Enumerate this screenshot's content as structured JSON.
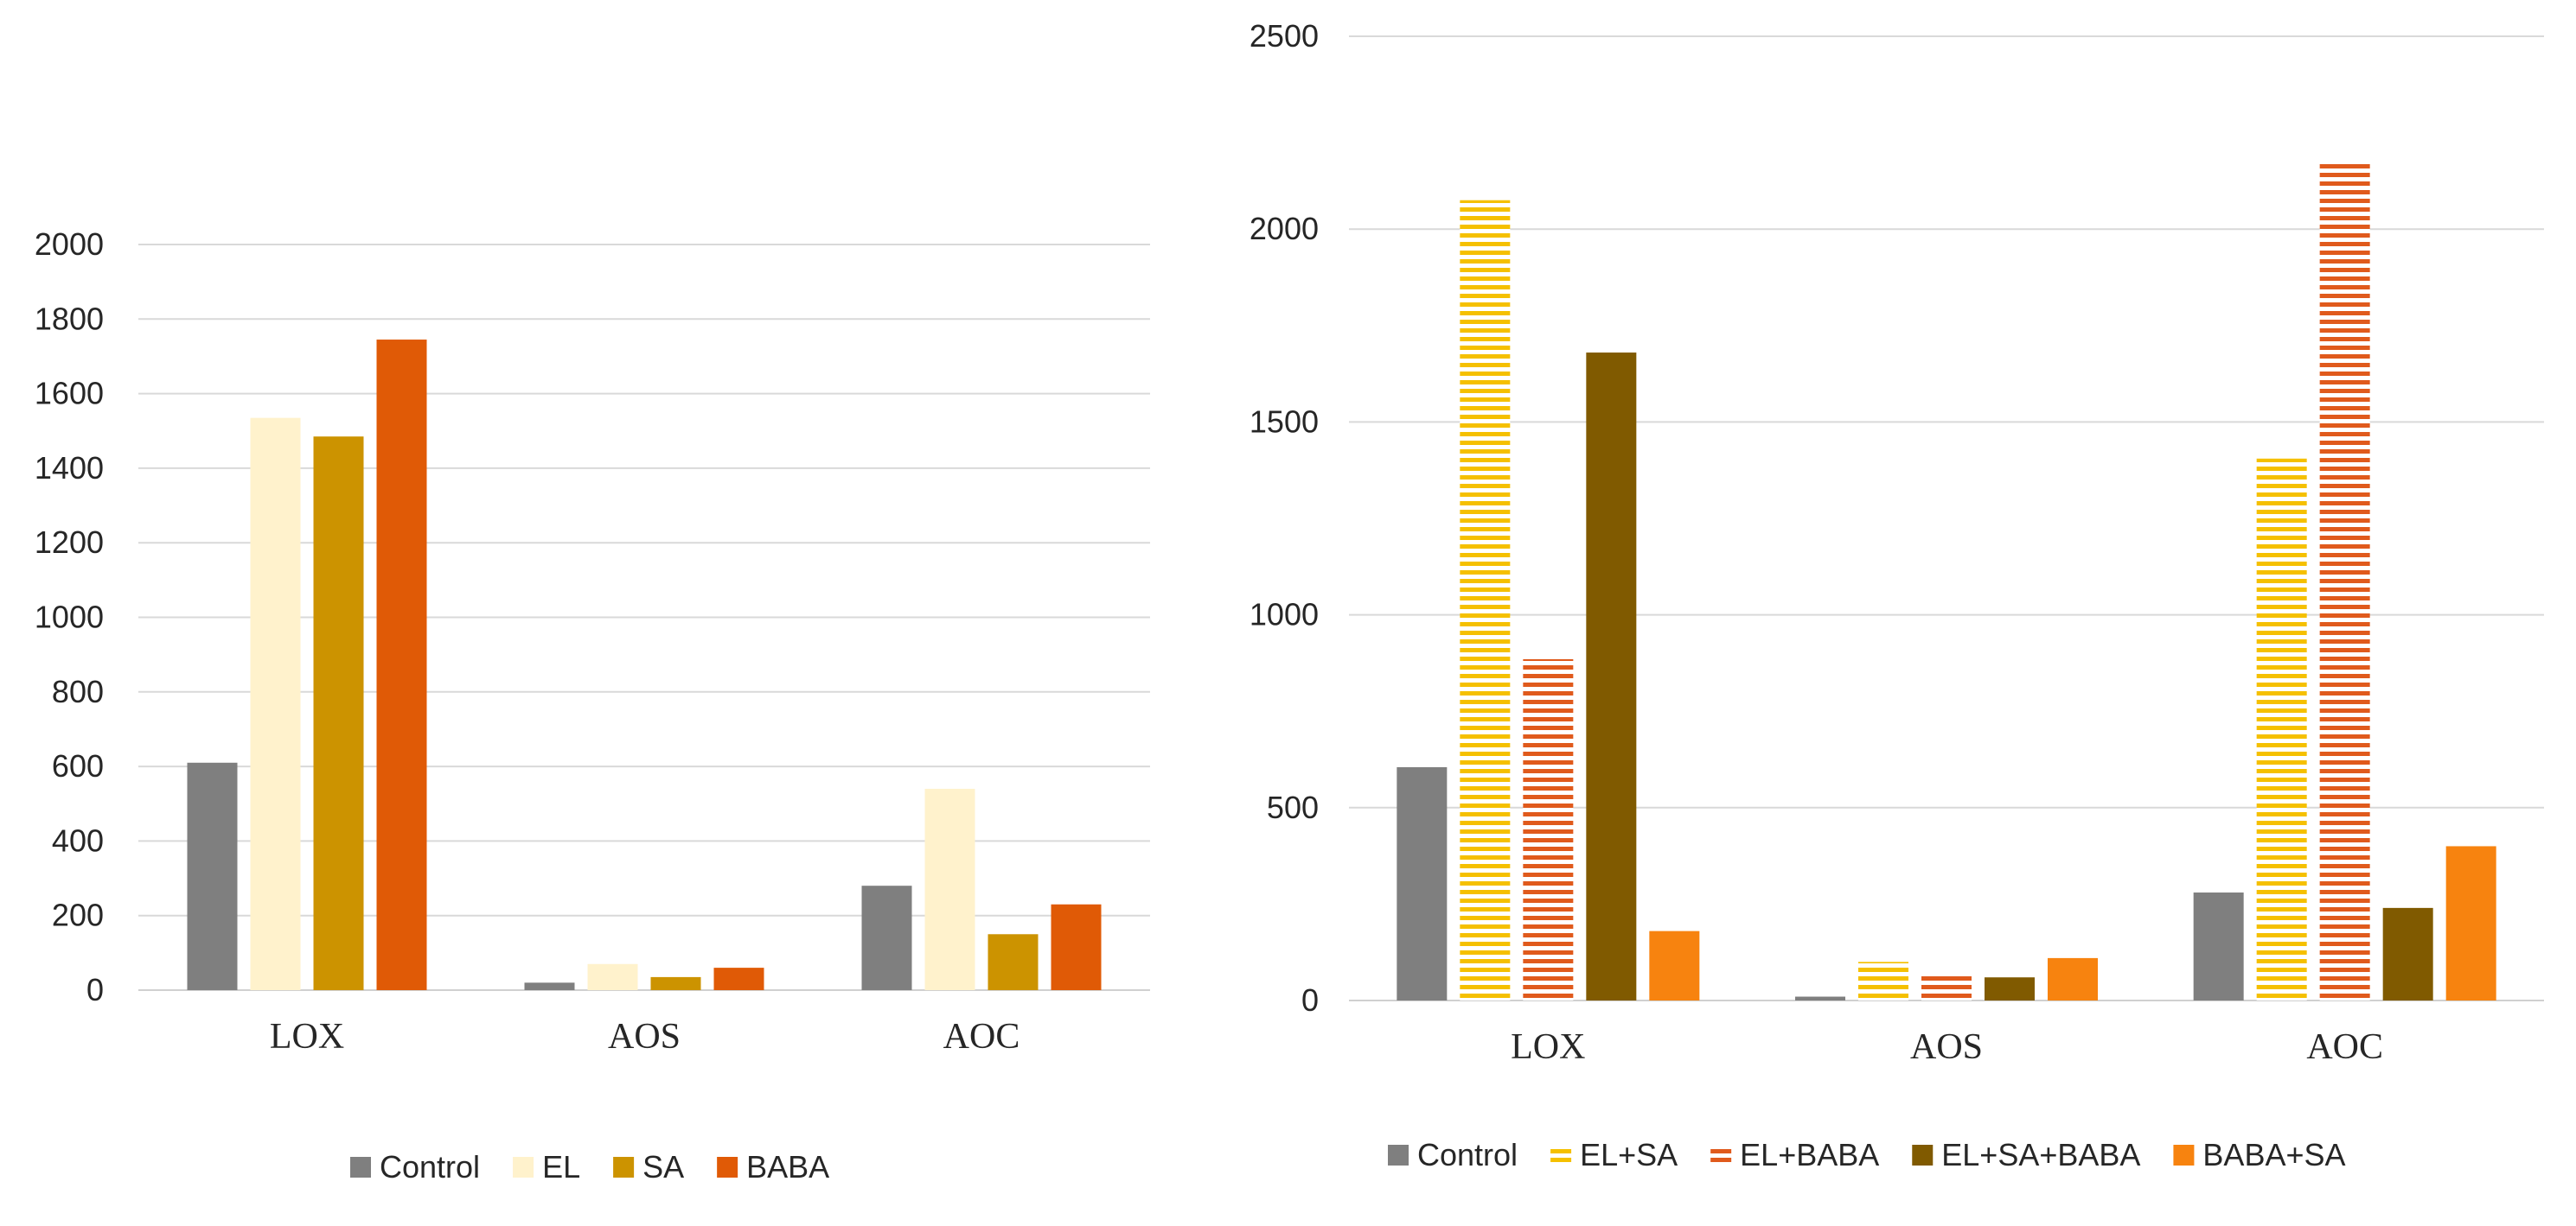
{
  "chart_data": [
    {
      "type": "bar",
      "title": "",
      "xlabel": "",
      "ylabel": "",
      "ylim": [
        0,
        2000
      ],
      "yticks": [
        0,
        200,
        400,
        600,
        800,
        1000,
        1200,
        1400,
        1600,
        1800,
        2000
      ],
      "categories": [
        "LOX",
        "AOS",
        "AOC"
      ],
      "legend_position": "bottom",
      "series": [
        {
          "name": "Control",
          "color": "#7f7f7f",
          "pattern": "solid",
          "values": [
            610,
            20,
            280
          ]
        },
        {
          "name": "EL",
          "color": "#fff2cc",
          "pattern": "solid",
          "values": [
            1535,
            70,
            540
          ]
        },
        {
          "name": "SA",
          "color": "#cc9300",
          "pattern": "solid",
          "values": [
            1485,
            35,
            150
          ]
        },
        {
          "name": "BABA",
          "color": "#e05a06",
          "pattern": "solid",
          "values": [
            1745,
            60,
            230
          ]
        }
      ]
    },
    {
      "type": "bar",
      "title": "",
      "xlabel": "",
      "ylabel": "",
      "ylim": [
        0,
        2500
      ],
      "yticks": [
        0,
        500,
        1000,
        1500,
        2000,
        2500
      ],
      "categories": [
        "LOX",
        "AOS",
        "AOC"
      ],
      "legend_position": "bottom",
      "series": [
        {
          "name": "Control",
          "color": "#7f7f7f",
          "pattern": "solid",
          "values": [
            605,
            10,
            280
          ]
        },
        {
          "name": "EL+SA",
          "color": "#f5c000",
          "pattern": "hstripe",
          "values": [
            2075,
            100,
            1405
          ]
        },
        {
          "name": "EL+BABA",
          "color": "#e05a1c",
          "pattern": "hstripe",
          "values": [
            885,
            70,
            2170
          ]
        },
        {
          "name": "EL+SA+BABA",
          "color": "#805a00",
          "pattern": "solid",
          "values": [
            1680,
            60,
            240
          ]
        },
        {
          "name": "BABA+SA",
          "color": "#f7830f",
          "pattern": "solid",
          "values": [
            180,
            110,
            400
          ]
        }
      ]
    }
  ]
}
